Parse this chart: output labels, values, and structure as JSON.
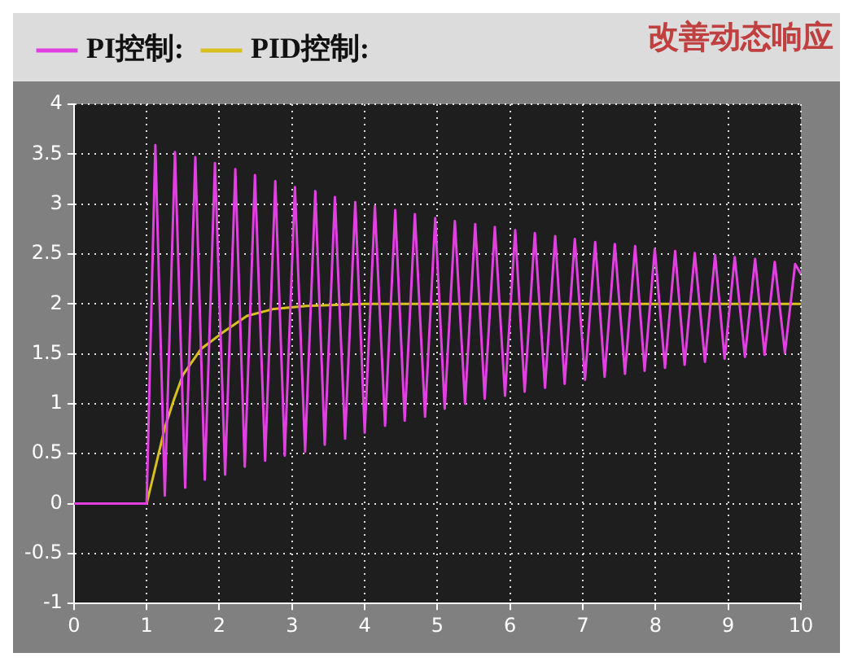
{
  "chart_data": {
    "type": "line",
    "annotations": [
      "改善动态响应"
    ],
    "legend": "top",
    "grid": true,
    "marker": "none",
    "line_style": "solid",
    "xlim": [
      0,
      10
    ],
    "xticks": [
      0,
      1,
      2,
      3,
      4,
      5,
      6,
      7,
      8,
      9,
      10
    ],
    "ylim": [
      -1,
      4
    ],
    "yticks": [
      -1,
      -0.5,
      0,
      0.5,
      1,
      1.5,
      2,
      2.5,
      3,
      3.5,
      4
    ],
    "series": [
      {
        "name": "PI控制:",
        "color": "#e040e0",
        "x": [
          0,
          1,
          1.12,
          1.25,
          1.39,
          1.53,
          1.67,
          1.8,
          1.94,
          2.08,
          2.22,
          2.35,
          2.49,
          2.63,
          2.77,
          2.9,
          3.04,
          3.18,
          3.32,
          3.45,
          3.59,
          3.73,
          3.87,
          4,
          4.14,
          4.28,
          4.42,
          4.55,
          4.69,
          4.83,
          4.97,
          5.1,
          5.24,
          5.38,
          5.52,
          5.65,
          5.79,
          5.93,
          6.07,
          6.2,
          6.34,
          6.48,
          6.62,
          6.75,
          6.89,
          7.03,
          7.17,
          7.3,
          7.44,
          7.58,
          7.72,
          7.85,
          7.99,
          8.13,
          8.27,
          8.4,
          8.54,
          8.68,
          8.82,
          8.95,
          9.09,
          9.23,
          9.37,
          9.5,
          9.64,
          9.78,
          9.92,
          10
        ],
        "values": [
          0,
          0,
          3.59,
          0.08,
          3.52,
          0.16,
          3.47,
          0.24,
          3.41,
          0.29,
          3.35,
          0.37,
          3.29,
          0.43,
          3.23,
          0.48,
          3.17,
          0.52,
          3.13,
          0.59,
          3.07,
          0.65,
          3.02,
          0.71,
          2.98,
          0.78,
          2.94,
          0.83,
          2.9,
          0.87,
          2.86,
          0.95,
          2.83,
          1,
          2.8,
          1.05,
          2.77,
          1.08,
          2.74,
          1.12,
          2.71,
          1.16,
          2.68,
          1.2,
          2.65,
          1.24,
          2.62,
          1.27,
          2.6,
          1.3,
          2.58,
          1.33,
          2.55,
          1.36,
          2.53,
          1.39,
          2.51,
          1.42,
          2.49,
          1.45,
          2.47,
          1.47,
          2.45,
          1.49,
          2.42,
          1.51,
          2.4,
          2.3
        ]
      },
      {
        "name": "PID控制:",
        "color": "#d8c020",
        "x": [
          0,
          1,
          1.1,
          1.25,
          1.37,
          1.5,
          1.75,
          2.04,
          2.38,
          2.75,
          3.2,
          4,
          10
        ],
        "values": [
          0,
          0,
          0.3,
          0.76,
          1.03,
          1.29,
          1.55,
          1.71,
          1.88,
          1.95,
          1.98,
          2,
          2
        ]
      }
    ]
  }
}
